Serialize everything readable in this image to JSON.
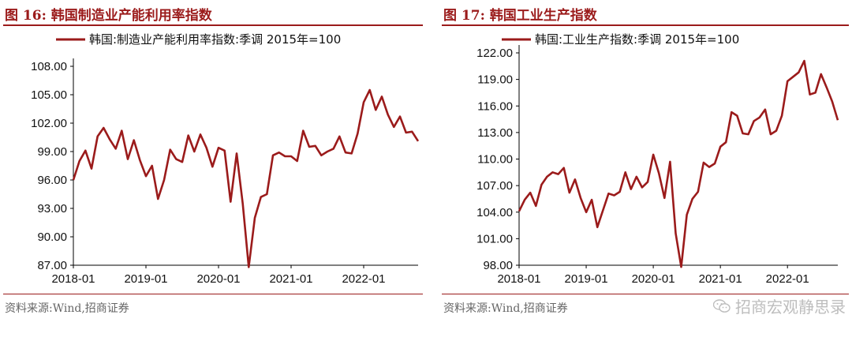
{
  "colors": {
    "series": "#9b1b1b",
    "title": "#9b1b1b"
  },
  "charts": [
    {
      "fig_title": "图 16:  韩国制造业产能利用率指数",
      "source": "资料来源:Wind,招商证券",
      "chart_data": {
        "type": "line",
        "title": "图 16:  韩国制造业产能利用率指数",
        "series": [
          {
            "name": "韩国:制造业产能利用率指数:季调  2015年=100",
            "values": [
              96.0,
              98.0,
              99.1,
              97.2,
              100.6,
              101.5,
              100.3,
              99.3,
              101.2,
              98.2,
              100.2,
              98.1,
              96.4,
              97.5,
              94.0,
              96.0,
              99.2,
              98.2,
              97.9,
              100.7,
              99.0,
              100.8,
              99.4,
              97.4,
              99.4,
              99.1,
              93.7,
              98.8,
              93.5,
              86.8,
              92.0,
              94.2,
              94.5,
              98.6,
              98.9,
              98.5,
              98.5,
              98.0,
              101.2,
              99.5,
              99.6,
              98.6,
              99.0,
              99.3,
              100.6,
              98.9,
              98.8,
              100.9,
              104.2,
              105.5,
              103.4,
              104.8,
              102.9,
              101.6,
              102.7,
              101.0,
              101.1,
              100.1
            ]
          }
        ],
        "x_start": "2018-01",
        "xticks": [
          "2018-01",
          "2019-01",
          "2020-01",
          "2021-01",
          "2022-01"
        ],
        "yticks": [
          "87.00",
          "90.00",
          "93.00",
          "96.00",
          "99.00",
          "102.00",
          "105.00",
          "108.00"
        ],
        "ylim": [
          87,
          108
        ],
        "grid": false,
        "legend": "top"
      }
    },
    {
      "fig_title": "图 17:  韩国工业生产指数",
      "source": "资料来源:Wind,招商证券",
      "chart_data": {
        "type": "line",
        "title": "图 17:  韩国工业生产指数",
        "series": [
          {
            "name": "韩国:工业生产指数:季调 2015年=100",
            "values": [
              104.1,
              105.4,
              106.2,
              104.7,
              107.1,
              108.0,
              108.5,
              108.3,
              109.0,
              106.2,
              107.7,
              105.6,
              104.0,
              105.4,
              102.3,
              104.2,
              106.1,
              105.9,
              106.3,
              108.5,
              106.6,
              108.0,
              106.8,
              107.4,
              110.5,
              108.4,
              105.6,
              109.7,
              101.6,
              97.8,
              103.7,
              105.5,
              106.3,
              109.6,
              109.1,
              109.5,
              111.4,
              111.9,
              115.3,
              114.9,
              112.9,
              112.8,
              114.3,
              114.7,
              115.6,
              112.8,
              113.2,
              114.9,
              118.8,
              119.3,
              119.8,
              121.1,
              117.3,
              117.5,
              119.6,
              118.1,
              116.5,
              114.4
            ]
          }
        ],
        "x_start": "2018-01",
        "xticks": [
          "2018-01",
          "2019-01",
          "2020-01",
          "2021-01",
          "2022-01"
        ],
        "yticks": [
          "98.00",
          "101.00",
          "104.00",
          "107.00",
          "110.00",
          "113.00",
          "116.00",
          "119.00",
          "122.00"
        ],
        "ylim": [
          98,
          122
        ],
        "grid": false,
        "legend": "top"
      }
    }
  ],
  "watermark": {
    "icon": "wechat-icon",
    "text": "招商宏观静思录"
  }
}
